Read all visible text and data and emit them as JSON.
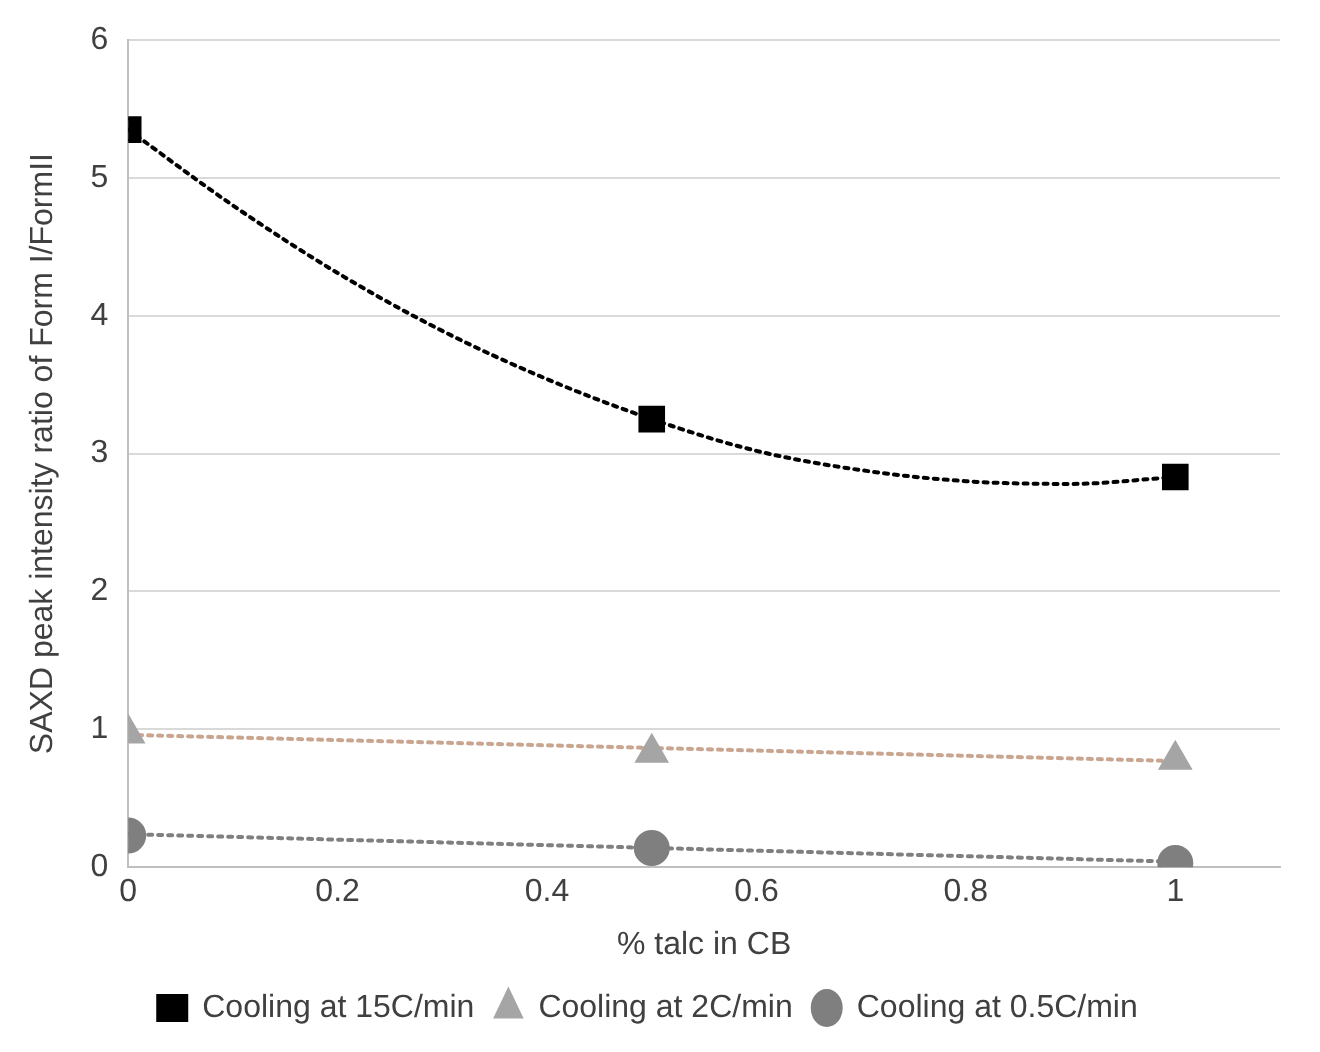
{
  "chart_data": {
    "type": "scatter",
    "xlabel": "% talc in CB",
    "ylabel": "SAXD peak intensity ratio of Form I/FormII",
    "xlim": [
      0,
      1.1
    ],
    "xticks": [
      0,
      0.2,
      0.4,
      0.6,
      0.8,
      1
    ],
    "ylim": [
      0,
      6
    ],
    "yticks": [
      0,
      1,
      2,
      3,
      4,
      5,
      6
    ],
    "grid": "y",
    "legend": "bottom",
    "series": [
      {
        "name": "Cooling at 15C/min",
        "color": "#000000",
        "marker": "square",
        "x": [
          0,
          0.5,
          1
        ],
        "values": [
          5.35,
          3.25,
          2.83
        ]
      },
      {
        "name": "Cooling at 2C/min",
        "color": "#a5a5a5",
        "marker": "triangle",
        "x": [
          0,
          0.5,
          1
        ],
        "values": [
          0.97,
          0.83,
          0.78
        ]
      },
      {
        "name": "Cooling at 0.5C/min",
        "color": "#7f7f7f",
        "marker": "circle",
        "x": [
          0,
          0.5,
          1
        ],
        "values": [
          0.23,
          0.14,
          0.03
        ]
      },
      {
        "type": "line",
        "color": "#000000",
        "line_style": "dotted",
        "marker": "none",
        "x": [
          0,
          0.1,
          0.2,
          0.3,
          0.4,
          0.5,
          0.6,
          0.7,
          0.8,
          0.9,
          1
        ],
        "values": [
          5.35,
          4.8,
          4.31,
          3.89,
          3.54,
          3.25,
          3.02,
          2.88,
          2.8,
          2.78,
          2.83
        ]
      },
      {
        "type": "line",
        "color": "#c9a58f",
        "line_style": "dotted",
        "marker": "none",
        "x": [
          0,
          1
        ],
        "values": [
          0.96,
          0.77
        ]
      },
      {
        "type": "line",
        "color": "#7f7f7f",
        "line_style": "dotted",
        "marker": "none",
        "x": [
          0,
          1
        ],
        "values": [
          0.24,
          0.04
        ]
      }
    ]
  }
}
